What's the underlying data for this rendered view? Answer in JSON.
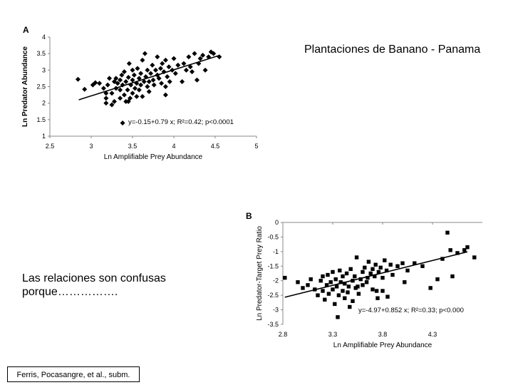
{
  "slide": {
    "title": "Plantaciones de Banano - Panama",
    "body_text": "Las relaciones son confusas porque…………….",
    "citation": "Ferris, Pocasangre, et al., subm."
  },
  "chart_data": [
    {
      "panel_label": "A",
      "type": "scatter",
      "xlabel": "Ln Amplifiable Prey Abundance",
      "ylabel": "Ln Predator Abundance",
      "xlim": [
        2.5,
        5
      ],
      "ylim": [
        1,
        4
      ],
      "x_ticks": [
        "2.5",
        "3",
        "3.5",
        "4",
        "4.5",
        "5"
      ],
      "y_ticks": [
        "1",
        "1.5",
        "2",
        "2.5",
        "3",
        "3.5",
        "4"
      ],
      "annotation": "y=-0.15+0.79 x; R²=0.42; p<0.0001",
      "grid": false,
      "marker": "diamond",
      "trendline": {
        "intercept": -0.15,
        "slope": 0.79,
        "x_range": [
          2.85,
          4.55
        ]
      },
      "points": [
        [
          2.84,
          2.72
        ],
        [
          2.92,
          2.42
        ],
        [
          3.02,
          2.55
        ],
        [
          3.05,
          2.62
        ],
        [
          3.1,
          2.6
        ],
        [
          3.15,
          2.45
        ],
        [
          3.18,
          2.3
        ],
        [
          3.18,
          2.15
        ],
        [
          3.18,
          2.0
        ],
        [
          3.2,
          2.55
        ],
        [
          3.22,
          2.75
        ],
        [
          3.25,
          2.3
        ],
        [
          3.28,
          2.65
        ],
        [
          3.28,
          2.05
        ],
        [
          3.3,
          2.45
        ],
        [
          3.3,
          2.75
        ],
        [
          3.32,
          2.6
        ],
        [
          3.35,
          2.7
        ],
        [
          3.35,
          2.4
        ],
        [
          3.35,
          2.15
        ],
        [
          3.37,
          2.85
        ],
        [
          3.38,
          2.55
        ],
        [
          3.4,
          2.25
        ],
        [
          3.4,
          2.95
        ],
        [
          3.42,
          2.65
        ],
        [
          3.42,
          2.05
        ],
        [
          3.44,
          2.4
        ],
        [
          3.45,
          2.78
        ],
        [
          3.46,
          3.2
        ],
        [
          3.47,
          2.15
        ],
        [
          3.48,
          2.55
        ],
        [
          3.5,
          2.7
        ],
        [
          3.5,
          2.3
        ],
        [
          3.5,
          3.0
        ],
        [
          3.52,
          2.85
        ],
        [
          3.53,
          2.45
        ],
        [
          3.55,
          2.6
        ],
        [
          3.55,
          2.2
        ],
        [
          3.56,
          3.05
        ],
        [
          3.58,
          2.75
        ],
        [
          3.58,
          2.4
        ],
        [
          3.6,
          2.9
        ],
        [
          3.6,
          2.55
        ],
        [
          3.62,
          3.3
        ],
        [
          3.62,
          2.2
        ],
        [
          3.64,
          2.65
        ],
        [
          3.65,
          3.5
        ],
        [
          3.66,
          2.8
        ],
        [
          3.68,
          2.5
        ],
        [
          3.68,
          3.0
        ],
        [
          3.7,
          2.65
        ],
        [
          3.7,
          2.35
        ],
        [
          3.72,
          2.9
        ],
        [
          3.74,
          3.15
        ],
        [
          3.75,
          2.7
        ],
        [
          3.76,
          2.55
        ],
        [
          3.78,
          3.0
        ],
        [
          3.8,
          2.85
        ],
        [
          3.8,
          3.4
        ],
        [
          3.82,
          2.75
        ],
        [
          3.84,
          3.05
        ],
        [
          3.85,
          2.6
        ],
        [
          3.86,
          3.2
        ],
        [
          3.88,
          2.95
        ],
        [
          3.9,
          2.5
        ],
        [
          3.9,
          3.3
        ],
        [
          3.92,
          2.8
        ],
        [
          3.94,
          3.1
        ],
        [
          3.95,
          2.65
        ],
        [
          3.98,
          3.0
        ],
        [
          4.0,
          3.35
        ],
        [
          4.02,
          2.9
        ],
        [
          4.05,
          3.15
        ],
        [
          4.1,
          2.65
        ],
        [
          4.12,
          3.2
        ],
        [
          4.15,
          3.0
        ],
        [
          4.18,
          3.4
        ],
        [
          4.2,
          3.1
        ],
        [
          4.22,
          2.95
        ],
        [
          4.25,
          3.5
        ],
        [
          4.28,
          2.7
        ],
        [
          4.3,
          3.2
        ],
        [
          4.32,
          3.35
        ],
        [
          4.35,
          3.45
        ],
        [
          4.38,
          3.0
        ],
        [
          4.42,
          3.4
        ],
        [
          4.45,
          3.55
        ],
        [
          4.48,
          3.5
        ],
        [
          4.55,
          3.4
        ],
        [
          3.25,
          1.95
        ],
        [
          3.38,
          1.4
        ],
        [
          3.45,
          2.05
        ],
        [
          3.9,
          2.25
        ]
      ]
    },
    {
      "panel_label": "B",
      "type": "scatter",
      "xlabel": "Ln Amplifiable Prey Abundance",
      "ylabel": "Ln Predator-Target Prey Ratio",
      "xlim": [
        2.8,
        4.8
      ],
      "ylim": [
        -3.5,
        0
      ],
      "x_ticks": [
        "2.8",
        "3.3",
        "3.8",
        "4.3"
      ],
      "y_ticks": [
        "0",
        "-0.5",
        "-1",
        "-1.5",
        "-2",
        "-2.5",
        "-3",
        "-3.5"
      ],
      "annotation": "y=-4.97+0.852 x; R²=0.33; p<0.000",
      "grid": false,
      "marker": "square",
      "trendline": {
        "intercept": -4.97,
        "slope": 0.852,
        "x_range": [
          2.82,
          4.65
        ]
      },
      "points": [
        [
          2.82,
          -1.9
        ],
        [
          2.95,
          -2.05
        ],
        [
          3.0,
          -2.25
        ],
        [
          3.05,
          -2.15
        ],
        [
          3.08,
          -1.95
        ],
        [
          3.12,
          -2.3
        ],
        [
          3.15,
          -2.5
        ],
        [
          3.18,
          -2.0
        ],
        [
          3.2,
          -2.35
        ],
        [
          3.2,
          -1.85
        ],
        [
          3.22,
          -2.65
        ],
        [
          3.24,
          -2.15
        ],
        [
          3.25,
          -1.8
        ],
        [
          3.26,
          -2.45
        ],
        [
          3.28,
          -2.05
        ],
        [
          3.3,
          -2.3
        ],
        [
          3.3,
          -1.7
        ],
        [
          3.32,
          -2.8
        ],
        [
          3.33,
          -1.95
        ],
        [
          3.34,
          -2.2
        ],
        [
          3.35,
          -3.25
        ],
        [
          3.36,
          -2.5
        ],
        [
          3.37,
          -1.65
        ],
        [
          3.38,
          -2.05
        ],
        [
          3.4,
          -2.35
        ],
        [
          3.4,
          -1.85
        ],
        [
          3.42,
          -2.6
        ],
        [
          3.42,
          -2.1
        ],
        [
          3.44,
          -1.75
        ],
        [
          3.45,
          -2.4
        ],
        [
          3.46,
          -2.2
        ],
        [
          3.47,
          -2.9
        ],
        [
          3.48,
          -1.6
        ],
        [
          3.5,
          -2.0
        ],
        [
          3.5,
          -2.7
        ],
        [
          3.52,
          -1.85
        ],
        [
          3.53,
          -2.25
        ],
        [
          3.54,
          -1.2
        ],
        [
          3.56,
          -2.45
        ],
        [
          3.58,
          -1.95
        ],
        [
          3.6,
          -1.7
        ],
        [
          3.6,
          -2.15
        ],
        [
          3.62,
          -1.55
        ],
        [
          3.64,
          -2.05
        ],
        [
          3.65,
          -1.9
        ],
        [
          3.66,
          -1.35
        ],
        [
          3.68,
          -1.75
        ],
        [
          3.7,
          -2.3
        ],
        [
          3.7,
          -1.6
        ],
        [
          3.72,
          -1.85
        ],
        [
          3.73,
          -1.45
        ],
        [
          3.74,
          -2.35
        ],
        [
          3.75,
          -2.6
        ],
        [
          3.76,
          -1.7
        ],
        [
          3.78,
          -1.55
        ],
        [
          3.8,
          -1.9
        ],
        [
          3.8,
          -2.35
        ],
        [
          3.82,
          -1.3
        ],
        [
          3.84,
          -1.65
        ],
        [
          3.85,
          -2.55
        ],
        [
          3.88,
          -1.45
        ],
        [
          3.9,
          -1.8
        ],
        [
          3.95,
          -1.5
        ],
        [
          4.0,
          -1.4
        ],
        [
          4.05,
          -1.65
        ],
        [
          4.12,
          -1.4
        ],
        [
          4.2,
          -1.5
        ],
        [
          4.28,
          -2.25
        ],
        [
          4.35,
          -1.95
        ],
        [
          4.4,
          -1.25
        ],
        [
          4.45,
          -0.35
        ],
        [
          4.48,
          -0.95
        ],
        [
          4.5,
          -1.85
        ],
        [
          4.55,
          -1.05
        ],
        [
          4.62,
          -0.95
        ],
        [
          4.65,
          -0.85
        ],
        [
          4.72,
          -1.2
        ],
        [
          4.02,
          -2.05
        ],
        [
          3.55,
          -2.2
        ]
      ]
    }
  ]
}
